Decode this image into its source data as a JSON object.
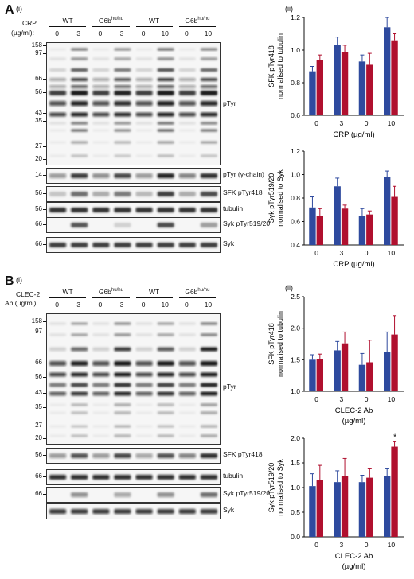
{
  "panels": {
    "A": {
      "letter": "A",
      "sub_i": "(i)",
      "sub_ii": "(ii)",
      "treatment_label": "CRP",
      "treatment_unit": "(µg/ml):",
      "groups": [
        "WT",
        "G6b",
        "WT",
        "G6b"
      ],
      "group_sup": "hu/hu",
      "doses": [
        "0",
        "3",
        "0",
        "3",
        "0",
        "10",
        "0",
        "10"
      ],
      "mw_main": [
        "158",
        "97",
        "66",
        "56",
        "43",
        "35",
        "27",
        "20"
      ],
      "blot_labels": [
        "pTyr",
        "pTyr (γ-chain)",
        "SFK pTyr418",
        "tubulin",
        "Syk pTyr519/20",
        "Syk"
      ],
      "strip_mw": [
        "14",
        "56",
        "56",
        "66",
        "66"
      ]
    },
    "B": {
      "letter": "B",
      "sub_i": "(i)",
      "sub_ii": "(ii)",
      "treatment_label": "CLEC-2",
      "treatment_unit": "Ab (µg/ml):",
      "groups": [
        "WT",
        "G6b",
        "WT",
        "G6b"
      ],
      "group_sup": "hu/hu",
      "doses": [
        "0",
        "3",
        "0",
        "3",
        "0",
        "10",
        "0",
        "10"
      ],
      "mw_main": [
        "158",
        "97",
        "66",
        "56",
        "43",
        "35",
        "27",
        "20"
      ],
      "blot_labels": [
        "pTyr",
        "SFK pTyr418",
        "tubulin",
        "Syk pTyr519/20",
        "Syk"
      ],
      "strip_mw": [
        "56",
        "66",
        "66"
      ]
    }
  },
  "chart_data": [
    {
      "type": "bar",
      "panel": "A(ii) top",
      "categories": [
        "0",
        "3",
        "0",
        "10"
      ],
      "xlabel": "CRP (µg/ml)",
      "ylabel": "SFK pTyr418 normalised to tubulin",
      "ylim": [
        0.6,
        1.2
      ],
      "yticks": [
        "0.6",
        "0.8",
        "1.0",
        "1.2"
      ],
      "series": [
        {
          "color": "#2e4a9e",
          "values": [
            0.87,
            1.03,
            0.93,
            1.14
          ],
          "errors": [
            0.03,
            0.05,
            0.04,
            0.06
          ]
        },
        {
          "color": "#b0102f",
          "values": [
            0.94,
            0.99,
            0.91,
            1.06
          ],
          "errors": [
            0.03,
            0.04,
            0.07,
            0.04
          ]
        }
      ]
    },
    {
      "type": "bar",
      "panel": "A(ii) bottom",
      "categories": [
        "0",
        "3",
        "0",
        "10"
      ],
      "xlabel": "CRP (µg/ml)",
      "ylabel": "Syk pTyr519/20 normalised to Syk",
      "ylim": [
        0.4,
        1.2
      ],
      "yticks": [
        "0.4",
        "0.6",
        "0.8",
        "1.0",
        "1.2"
      ],
      "series": [
        {
          "color": "#2e4a9e",
          "values": [
            0.72,
            0.9,
            0.65,
            0.98
          ],
          "errors": [
            0.09,
            0.07,
            0.06,
            0.05
          ]
        },
        {
          "color": "#b0102f",
          "values": [
            0.65,
            0.71,
            0.66,
            0.81
          ],
          "errors": [
            0.06,
            0.03,
            0.03,
            0.09
          ]
        }
      ]
    },
    {
      "type": "bar",
      "panel": "B(ii) top",
      "categories": [
        "0",
        "3",
        "0",
        "10"
      ],
      "xlabel": "CLEC-2 Ab",
      "xlabel2": "(µg/ml)",
      "ylabel": "SFK pTyr418 normalised to tubulin",
      "ylim": [
        1.0,
        2.5
      ],
      "yticks": [
        "1.0",
        "1.5",
        "2.0",
        "2.5"
      ],
      "series": [
        {
          "color": "#2e4a9e",
          "values": [
            1.5,
            1.65,
            1.42,
            1.62
          ],
          "errors": [
            0.08,
            0.14,
            0.18,
            0.32
          ]
        },
        {
          "color": "#b0102f",
          "values": [
            1.51,
            1.76,
            1.46,
            1.9
          ],
          "errors": [
            0.08,
            0.18,
            0.35,
            0.3
          ]
        }
      ]
    },
    {
      "type": "bar",
      "panel": "B(ii) bottom",
      "categories": [
        "0",
        "3",
        "0",
        "10"
      ],
      "xlabel": "CLEC-2 Ab",
      "xlabel2": "(µg/ml)",
      "ylabel": "Syk pTyr519/20 normalised to Syk",
      "ylim": [
        0.0,
        2.0
      ],
      "yticks": [
        "0.0",
        "0.5",
        "1.0",
        "1.5",
        "2.0"
      ],
      "annotation": "*",
      "series": [
        {
          "color": "#2e4a9e",
          "values": [
            1.03,
            1.11,
            1.11,
            1.24
          ],
          "errors": [
            0.25,
            0.23,
            0.14,
            0.14
          ]
        },
        {
          "color": "#b0102f",
          "values": [
            1.15,
            1.24,
            1.2,
            1.83
          ],
          "errors": [
            0.3,
            0.35,
            0.18,
            0.1
          ]
        }
      ]
    }
  ]
}
